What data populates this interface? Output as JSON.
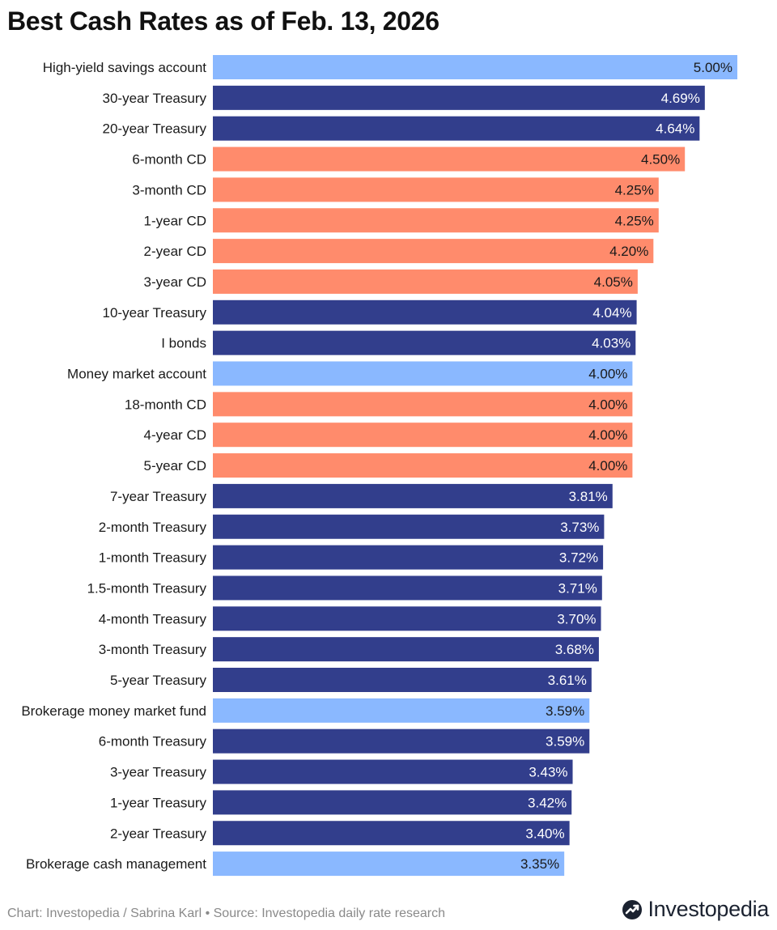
{
  "header": {
    "title": "Best Cash Rates as of Feb. 13, 2026"
  },
  "colors": {
    "high-yield": "#8ab8ff",
    "treasury": "#323e8c",
    "cd": "#ff8b6c",
    "text_dark": "#1a1a1a",
    "text_light": "#ffffff"
  },
  "chart_data": {
    "type": "bar",
    "orientation": "horizontal",
    "title": "Best Cash Rates as of Feb. 13, 2026",
    "xlabel": "",
    "ylabel": "",
    "xlim": [
      0,
      5
    ],
    "grid": false,
    "legend": "none",
    "value_suffix": "%",
    "categories": [
      "High-yield savings account",
      "30-year Treasury",
      "20-year Treasury",
      "6-month CD",
      "3-month CD",
      "1-year CD",
      "2-year CD",
      "3-year CD",
      "10-year Treasury",
      "I bonds",
      "Money market account",
      "18-month CD",
      "4-year CD",
      "5-year CD",
      "7-year Treasury",
      "2-month Treasury",
      "1-month Treasury",
      "1.5-month Treasury",
      "4-month Treasury",
      "3-month Treasury",
      "5-year Treasury",
      "Brokerage money market fund",
      "6-month Treasury",
      "3-year Treasury",
      "1-year Treasury",
      "2-year Treasury",
      "Brokerage cash management"
    ],
    "values": [
      5.0,
      4.69,
      4.64,
      4.5,
      4.25,
      4.25,
      4.2,
      4.05,
      4.04,
      4.03,
      4.0,
      4.0,
      4.0,
      4.0,
      3.81,
      3.73,
      3.72,
      3.71,
      3.7,
      3.68,
      3.61,
      3.59,
      3.59,
      3.43,
      3.42,
      3.4,
      3.35
    ],
    "value_labels": [
      "5.00%",
      "4.69%",
      "4.64%",
      "4.50%",
      "4.25%",
      "4.25%",
      "4.20%",
      "4.05%",
      "4.04%",
      "4.03%",
      "4.00%",
      "4.00%",
      "4.00%",
      "4.00%",
      "3.81%",
      "3.73%",
      "3.72%",
      "3.71%",
      "3.70%",
      "3.68%",
      "3.61%",
      "3.59%",
      "3.59%",
      "3.43%",
      "3.42%",
      "3.40%",
      "3.35%"
    ],
    "groups": [
      "high-yield",
      "treasury",
      "treasury",
      "cd",
      "cd",
      "cd",
      "cd",
      "cd",
      "treasury",
      "treasury",
      "high-yield",
      "cd",
      "cd",
      "cd",
      "treasury",
      "treasury",
      "treasury",
      "treasury",
      "treasury",
      "treasury",
      "treasury",
      "high-yield",
      "treasury",
      "treasury",
      "treasury",
      "treasury",
      "high-yield"
    ]
  },
  "footer": {
    "credit": "Chart: Investopedia / Sabrina Karl • Source: Investopedia daily rate research"
  },
  "brand": {
    "name": "Investopedia",
    "icon": "investopedia-logo-icon"
  }
}
